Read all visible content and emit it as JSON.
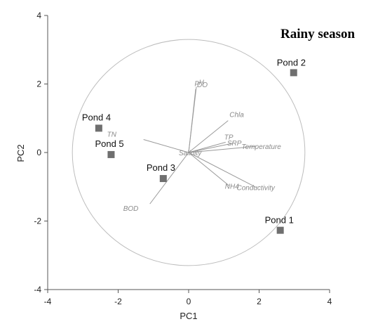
{
  "chart_data": {
    "type": "scatter",
    "title": "Rainy season",
    "xlabel": "PC1",
    "ylabel": "PC2",
    "xlim": [
      -4,
      4
    ],
    "ylim": [
      -4,
      4
    ],
    "xticks": [
      "-4",
      "-2",
      "0",
      "2",
      "4"
    ],
    "yticks": [
      "-4",
      "-2",
      "0",
      "2",
      "4"
    ],
    "grid": false,
    "points": [
      {
        "label": "Pond 1",
        "x": 2.6,
        "y": -2.27
      },
      {
        "label": "Pond 2",
        "x": 2.98,
        "y": 2.33
      },
      {
        "label": "Pond 3",
        "x": -0.72,
        "y": -0.76
      },
      {
        "label": "Pond 4",
        "x": -2.55,
        "y": 0.71
      },
      {
        "label": "Pond 5",
        "x": -2.2,
        "y": -0.06
      }
    ],
    "correlation_circle_radius": 3.3,
    "loadings": [
      {
        "label": "pH",
        "x": 0.22,
        "y": 1.92
      },
      {
        "label": "DO",
        "x": 0.2,
        "y": 1.85
      },
      {
        "label": "Chla",
        "x": 1.12,
        "y": 0.93
      },
      {
        "label": "TP",
        "x": 1.05,
        "y": 0.3
      },
      {
        "label": "SRP",
        "x": 1.25,
        "y": 0.27
      },
      {
        "label": "Temperature",
        "x": 1.9,
        "y": 0.18
      },
      {
        "label": "TN",
        "x": -1.28,
        "y": 0.38
      },
      {
        "label": "Salinity",
        "x": 0.0,
        "y": 0.0
      },
      {
        "label": "NH4",
        "x": 1.15,
        "y": -0.97
      },
      {
        "label": "Conductivity",
        "x": 1.92,
        "y": -1.02
      },
      {
        "label": "BOD",
        "x": -1.1,
        "y": -1.5
      }
    ]
  }
}
